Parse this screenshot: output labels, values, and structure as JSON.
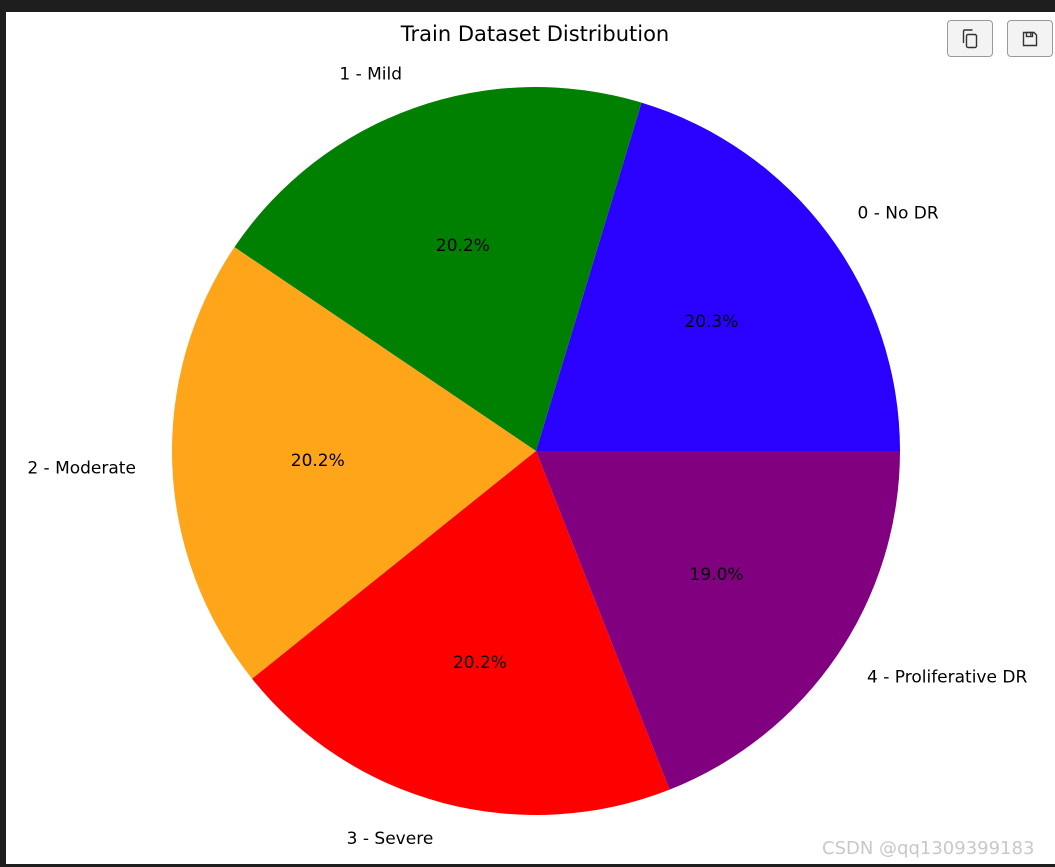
{
  "toolbar": {
    "copy_icon": "copy-icon",
    "save_icon": "save-icon"
  },
  "watermark": "CSDN @qq1309399183",
  "chart_data": {
    "type": "pie",
    "title": "Train Dataset Distribution",
    "start_angle_deg": 0,
    "direction": "counterclockwise",
    "slices": [
      {
        "label": "0 - No DR",
        "value": 20.3,
        "pct_label": "20.3%",
        "color": "#2a00ff"
      },
      {
        "label": "1 - Mild",
        "value": 20.2,
        "pct_label": "20.2%",
        "color": "#008000"
      },
      {
        "label": "2 - Moderate",
        "value": 20.2,
        "pct_label": "20.2%",
        "color": "#ffa51a"
      },
      {
        "label": "3 - Severe",
        "value": 20.2,
        "pct_label": "20.2%",
        "color": "#ff0000"
      },
      {
        "label": "4 - Proliferative DR",
        "value": 19.0,
        "pct_label": "19.0%",
        "color": "#800080"
      }
    ]
  }
}
